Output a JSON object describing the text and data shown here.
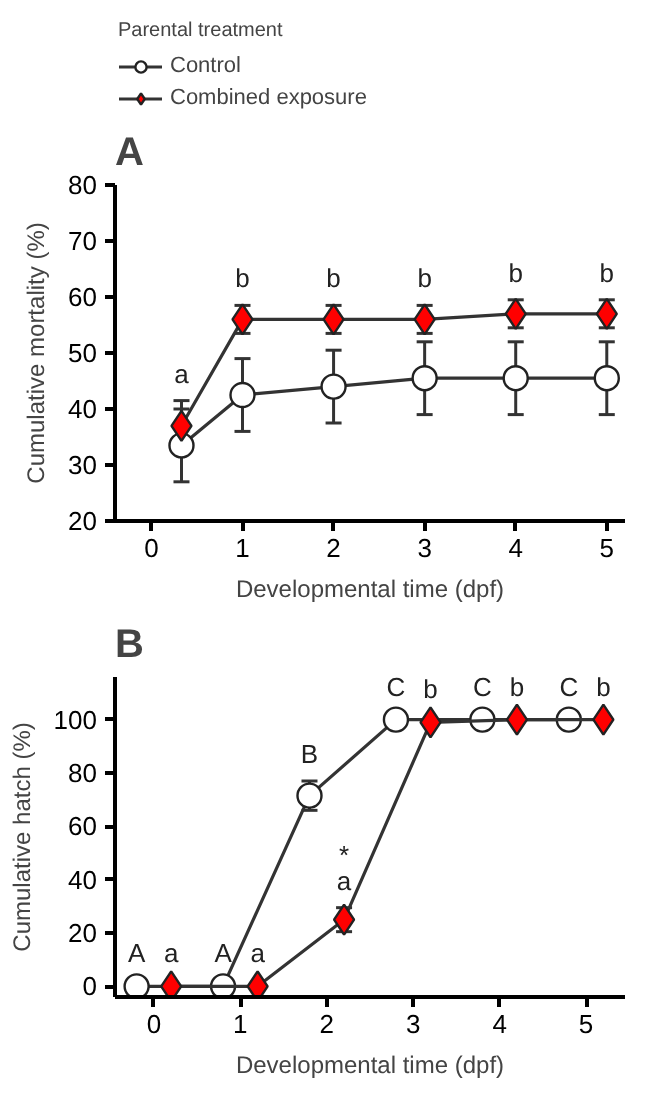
{
  "chart_data": [
    {
      "type": "line",
      "title": "A",
      "xlabel": "Developmental time (dpf)",
      "ylabel": "Cumulative mortality (%)",
      "legend_title": "Parental treatment",
      "legend": "top",
      "x": [
        0.33,
        1,
        2,
        3,
        4,
        5
      ],
      "xlim": [
        -0.4,
        5.2
      ],
      "xticks": [
        0,
        1,
        2,
        3,
        4,
        5
      ],
      "ylim": [
        20,
        80
      ],
      "yticks": [
        20,
        30,
        40,
        50,
        60,
        70,
        80
      ],
      "grid": false,
      "series": [
        {
          "name": "Control",
          "color": "#ffffff",
          "marker": "circle",
          "values": [
            33.5,
            42.5,
            44,
            45.5,
            45.5,
            45.5
          ],
          "errors": [
            6.5,
            6.5,
            6.5,
            6.5,
            6.5,
            6.5
          ]
        },
        {
          "name": "Combined exposure",
          "color": "#ff0000",
          "marker": "diamond",
          "values": [
            37,
            56,
            56,
            56,
            57,
            57
          ],
          "errors": [
            4.5,
            2.5,
            2.5,
            2.5,
            2.5,
            2.5
          ]
        }
      ],
      "annotations": [
        {
          "text": "a",
          "x": 0.33,
          "y": 37
        },
        {
          "text": "b",
          "x": 1,
          "y": 56
        },
        {
          "text": "b",
          "x": 2,
          "y": 56
        },
        {
          "text": "b",
          "x": 3,
          "y": 56
        },
        {
          "text": "b",
          "x": 4,
          "y": 57
        },
        {
          "text": "b",
          "x": 5,
          "y": 57
        }
      ]
    },
    {
      "type": "line",
      "title": "B",
      "xlabel": "Developmental time (dpf)",
      "ylabel": "Cumulative hatch (%)",
      "xlim": [
        -0.45,
        5.45
      ],
      "xticks": [
        0,
        1,
        2,
        3,
        4,
        5
      ],
      "ylim": [
        -4,
        116
      ],
      "yticks": [
        0,
        20,
        40,
        60,
        80,
        100
      ],
      "grid": false,
      "series": [
        {
          "color": "#ffffff",
          "marker": "circle",
          "x": [
            -0.2,
            0.8,
            1.8,
            2.8,
            3.8,
            4.8
          ],
          "values": [
            0,
            0,
            71.5,
            100,
            100,
            100
          ],
          "errors": [
            null,
            null,
            5.5,
            null,
            null,
            null
          ]
        },
        {
          "color": "#ff0000",
          "marker": "diamond",
          "x": [
            0.2,
            1.2,
            2.2,
            3.2,
            4.2,
            5.2
          ],
          "values": [
            0,
            0,
            25,
            99,
            100,
            100
          ],
          "errors": [
            null,
            null,
            4.5,
            null,
            null,
            null
          ]
        }
      ],
      "annotations": [
        {
          "text": "A",
          "x": -0.2,
          "y": 0
        },
        {
          "text": "a",
          "x": 0.2,
          "y": 0
        },
        {
          "text": "A",
          "x": 0.8,
          "y": 0
        },
        {
          "text": "a",
          "x": 1.2,
          "y": 0
        },
        {
          "text": "B",
          "x": 1.8,
          "y": 71.5
        },
        {
          "text": "a",
          "x": 2.2,
          "y": 25
        },
        {
          "text": "*",
          "x": 2.2,
          "y": 25
        },
        {
          "text": "C",
          "x": 2.8,
          "y": 100
        },
        {
          "text": "b",
          "x": 3.2,
          "y": 99
        },
        {
          "text": "C",
          "x": 3.8,
          "y": 100
        },
        {
          "text": "b",
          "x": 4.2,
          "y": 100
        },
        {
          "text": "C",
          "x": 4.8,
          "y": 100
        },
        {
          "text": "b",
          "x": 5.2,
          "y": 100
        }
      ]
    }
  ]
}
